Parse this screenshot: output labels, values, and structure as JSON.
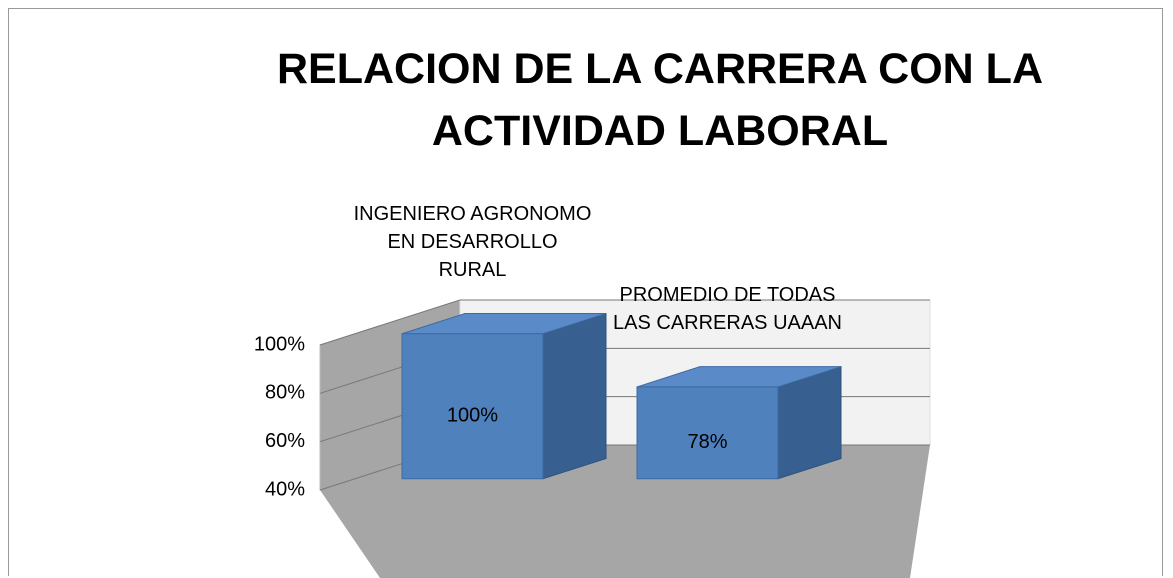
{
  "chart_data": {
    "type": "bar3d",
    "title": "RELACION DE LA CARRERA CON LA ACTIVIDAD LABORAL",
    "categories": [
      "INGENIERO AGRONOMO EN DESARROLLO RURAL",
      "PROMEDIO DE TODAS LAS CARRERAS UAAAN"
    ],
    "values": [
      100,
      78
    ],
    "value_labels": [
      "100%",
      "78%"
    ],
    "color": "#4f81bd",
    "ylim": [
      40,
      100
    ],
    "yticks": [
      {
        "value": 40,
        "label": "40%"
      },
      {
        "value": 60,
        "label": "60%"
      },
      {
        "value": 80,
        "label": "80%"
      },
      {
        "value": 100,
        "label": "100%"
      }
    ],
    "grid": true
  }
}
